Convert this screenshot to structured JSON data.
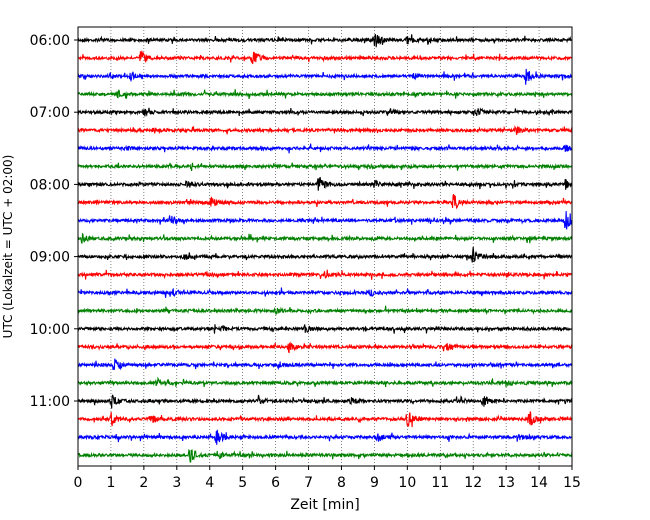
{
  "chart_data": {
    "type": "line",
    "subtype": "helicorder",
    "xlabel": "Zeit  [min]",
    "ylabel": "UTC (Lokalzeit = UTC + 02:00)",
    "xlim": [
      0,
      15
    ],
    "x_ticks": [
      "0",
      "1",
      "2",
      "3",
      "4",
      "5",
      "6",
      "7",
      "8",
      "9",
      "10",
      "11",
      "12",
      "13",
      "14",
      "15"
    ],
    "y_tick_labels": [
      "06:00",
      "07:00",
      "08:00",
      "09:00",
      "10:00",
      "11:00"
    ],
    "grid_x": true,
    "grid_style": "dotted",
    "trace_colors": [
      "#000000",
      "#ff0000",
      "#0000ff",
      "#008000"
    ],
    "rows": [
      {
        "time": "06:00",
        "events": [
          {
            "t": 9.0,
            "amp": 1.0
          },
          {
            "t": 10.0,
            "amp": 0.5
          },
          {
            "t": 10.6,
            "amp": 0.6
          }
        ]
      },
      {
        "time": "06:15",
        "events": [
          {
            "t": 1.9,
            "amp": 0.8
          },
          {
            "t": 5.3,
            "amp": 0.9
          }
        ]
      },
      {
        "time": "06:30",
        "events": [
          {
            "t": 1.6,
            "amp": 0.4
          },
          {
            "t": 10.2,
            "amp": 0.4
          },
          {
            "t": 13.6,
            "amp": 1.0
          }
        ]
      },
      {
        "time": "06:45",
        "events": [
          {
            "t": 1.2,
            "amp": 0.3
          }
        ]
      },
      {
        "time": "07:00",
        "events": [
          {
            "t": 2.0,
            "amp": 0.4
          },
          {
            "t": 9.5,
            "amp": 0.35
          },
          {
            "t": 12.1,
            "amp": 0.6
          }
        ]
      },
      {
        "time": "07:15",
        "events": [
          {
            "t": 2.3,
            "amp": 0.3
          },
          {
            "t": 13.3,
            "amp": 0.5
          }
        ]
      },
      {
        "time": "07:30",
        "events": [
          {
            "t": 1.4,
            "amp": 0.25
          },
          {
            "t": 14.8,
            "amp": 0.4
          }
        ]
      },
      {
        "time": "07:45",
        "events": [
          {
            "t": 8.8,
            "amp": 0.25
          }
        ]
      },
      {
        "time": "08:00",
        "events": [
          {
            "t": 3.3,
            "amp": 0.45
          },
          {
            "t": 7.3,
            "amp": 1.0
          },
          {
            "t": 9.0,
            "amp": 0.4
          },
          {
            "t": 14.8,
            "amp": 0.5
          }
        ]
      },
      {
        "time": "08:15",
        "events": [
          {
            "t": 4.0,
            "amp": 0.8
          },
          {
            "t": 11.4,
            "amp": 1.0
          }
        ]
      },
      {
        "time": "08:30",
        "events": [
          {
            "t": 2.8,
            "amp": 0.6
          },
          {
            "t": 14.8,
            "amp": 1.2
          }
        ]
      },
      {
        "time": "08:45",
        "events": [
          {
            "t": 0.1,
            "amp": 0.5
          }
        ]
      },
      {
        "time": "09:00",
        "events": [
          {
            "t": 3.2,
            "amp": 0.35
          },
          {
            "t": 12.0,
            "amp": 1.0
          }
        ]
      },
      {
        "time": "09:15",
        "events": [
          {
            "t": 3.9,
            "amp": 0.3
          },
          {
            "t": 7.5,
            "amp": 0.3
          }
        ]
      },
      {
        "time": "09:30",
        "events": [
          {
            "t": 2.9,
            "amp": 0.3
          },
          {
            "t": 8.9,
            "amp": 0.3
          }
        ]
      },
      {
        "time": "09:45",
        "events": [
          {
            "t": 6.0,
            "amp": 0.3
          }
        ]
      },
      {
        "time": "10:00",
        "events": [
          {
            "t": 4.4,
            "amp": 0.3
          },
          {
            "t": 6.9,
            "amp": 0.45
          }
        ]
      },
      {
        "time": "10:15",
        "events": [
          {
            "t": 6.4,
            "amp": 0.5
          },
          {
            "t": 11.2,
            "amp": 0.35
          }
        ]
      },
      {
        "time": "10:30",
        "events": [
          {
            "t": 1.1,
            "amp": 0.9
          },
          {
            "t": 6.1,
            "amp": 0.35
          }
        ]
      },
      {
        "time": "10:45",
        "events": [
          {
            "t": 2.4,
            "amp": 0.45
          },
          {
            "t": 13.0,
            "amp": 0.35
          }
        ]
      },
      {
        "time": "11:00",
        "events": [
          {
            "t": 1.0,
            "amp": 0.8
          },
          {
            "t": 5.5,
            "amp": 0.4
          },
          {
            "t": 8.3,
            "amp": 0.4
          },
          {
            "t": 12.3,
            "amp": 0.6
          }
        ]
      },
      {
        "time": "11:15",
        "events": [
          {
            "t": 1.0,
            "amp": 0.8
          },
          {
            "t": 2.2,
            "amp": 0.6
          },
          {
            "t": 10.0,
            "amp": 1.0
          },
          {
            "t": 13.7,
            "amp": 0.9
          }
        ]
      },
      {
        "time": "11:30",
        "events": [
          {
            "t": 4.2,
            "amp": 0.9
          },
          {
            "t": 9.1,
            "amp": 0.5
          },
          {
            "t": 13.4,
            "amp": 0.3
          }
        ]
      },
      {
        "time": "11:45",
        "events": [
          {
            "t": 3.4,
            "amp": 0.9
          },
          {
            "t": 4.3,
            "amp": 0.3
          }
        ]
      }
    ]
  }
}
